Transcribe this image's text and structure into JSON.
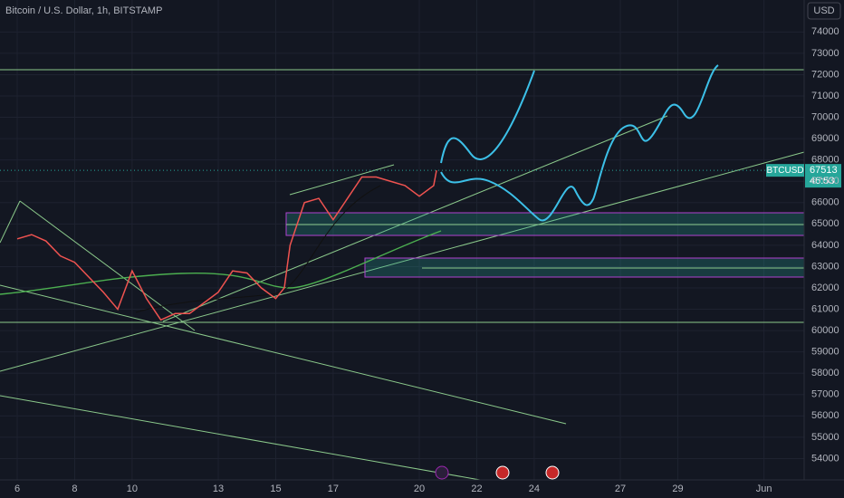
{
  "chart_data": {
    "type": "line",
    "title": "Bitcoin / U.S. Dollar, 1h, BITSTAMP",
    "currency": "USD",
    "symbol": "BTCUSD",
    "last_price": 67513,
    "countdown": "46:53",
    "series": [
      {
        "name": "BTCUSD",
        "color": "#ef5350",
        "x": [
          0,
          0.5,
          1,
          1.5,
          2,
          2.5,
          3,
          3.5,
          4,
          4.5,
          5,
          5.5,
          6,
          6.5,
          7,
          7.5,
          8,
          8.5,
          9,
          9.3,
          9.5,
          10,
          10.5,
          11,
          11.5,
          12,
          12.5,
          13,
          13.5,
          14,
          14.5,
          14.6
        ],
        "values": [
          64300,
          64500,
          64200,
          63500,
          63200,
          62500,
          61800,
          61000,
          62800,
          61500,
          60500,
          60800,
          60800,
          61300,
          61800,
          62800,
          62700,
          62000,
          61500,
          62000,
          64000,
          66000,
          66200,
          65200,
          66200,
          67200,
          67200,
          67000,
          66800,
          66300,
          66800,
          67513
        ]
      }
    ],
    "xlim": [
      -0.6,
      27.4
    ],
    "xticks": [
      {
        "value": 0,
        "label": "6"
      },
      {
        "value": 2,
        "label": "8"
      },
      {
        "value": 4,
        "label": "10"
      },
      {
        "value": 7,
        "label": "13"
      },
      {
        "value": 9,
        "label": "15"
      },
      {
        "value": 11,
        "label": "17"
      },
      {
        "value": 14,
        "label": "20"
      },
      {
        "value": 16,
        "label": "22"
      },
      {
        "value": 18,
        "label": "24"
      },
      {
        "value": 21,
        "label": "27"
      },
      {
        "value": 23,
        "label": "29"
      },
      {
        "value": 26,
        "label": "Jun"
      }
    ],
    "ylim": [
      53000,
      75500
    ],
    "yticks": [
      54000,
      55000,
      56000,
      57000,
      58000,
      59000,
      60000,
      61000,
      62000,
      63000,
      64000,
      65000,
      66000,
      67000,
      68000,
      69000,
      70000,
      71000,
      72000,
      73000,
      74000
    ],
    "grid": true
  }
}
